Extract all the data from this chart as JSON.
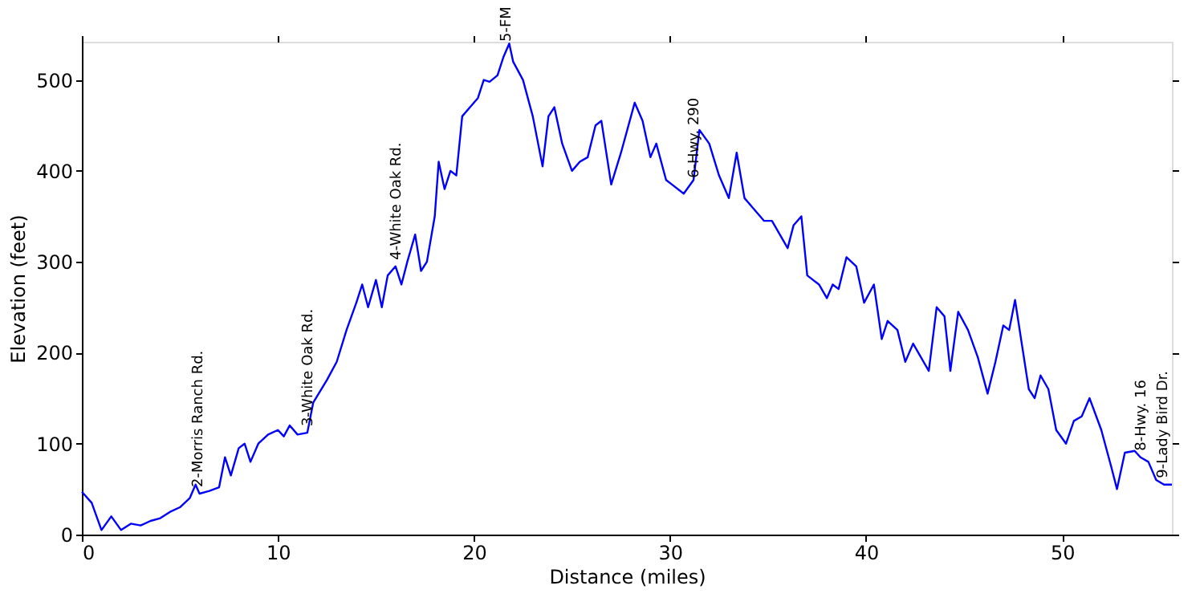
{
  "chart_data": {
    "type": "line",
    "xlabel": "Distance (miles)",
    "ylabel": "Elevation (feet)",
    "xlim": [
      0,
      55.6
    ],
    "ylim": [
      0,
      542
    ],
    "xticks": [
      0,
      10,
      20,
      30,
      40,
      50
    ],
    "yticks": [
      0,
      100,
      200,
      300,
      400,
      500
    ],
    "grid": false,
    "marker": "none",
    "line_style": "solid",
    "series": [
      {
        "color": "#0000ff",
        "x": [
          0,
          0.5,
          1.0,
          1.5,
          2,
          2.5,
          3,
          3.5,
          4,
          4.5,
          5,
          5.5,
          5.8,
          6,
          6.5,
          7,
          7.3,
          7.6,
          8,
          8.3,
          8.6,
          9,
          9.5,
          10,
          10.3,
          10.6,
          11,
          11.5,
          11.8,
          12.5,
          13,
          13.5,
          14,
          14.3,
          14.6,
          15,
          15.3,
          15.6,
          16,
          16.3,
          16.6,
          17,
          17.3,
          17.6,
          18,
          18.2,
          18.5,
          18.8,
          19.1,
          19.4,
          19.8,
          20.2,
          20.5,
          20.8,
          21.2,
          21.5,
          21.8,
          22,
          22.5,
          23,
          23.5,
          23.8,
          24.1,
          24.5,
          25,
          25.4,
          25.8,
          26.2,
          26.5,
          27,
          27.5,
          28.2,
          28.6,
          29,
          29.3,
          29.8,
          30.1,
          30.7,
          31.2,
          31.5,
          32,
          32.5,
          33,
          33.4,
          33.8,
          34.2,
          34.8,
          35.2,
          35.6,
          36,
          36.3,
          36.7,
          37,
          37.6,
          38,
          38.3,
          38.6,
          39,
          39.5,
          39.9,
          40.4,
          40.8,
          41.1,
          41.6,
          42,
          42.4,
          42.8,
          43.2,
          43.6,
          44,
          44.3,
          44.7,
          45.2,
          45.7,
          46.2,
          46.6,
          47,
          47.3,
          47.6,
          48.3,
          48.6,
          48.9,
          49.3,
          49.7,
          50.2,
          50.6,
          51,
          51.4,
          52,
          52.5,
          52.8,
          53.2,
          53.7,
          54,
          54.4,
          54.8,
          55.2,
          55.6
        ],
        "values": [
          47,
          35,
          5,
          20,
          5,
          12,
          10,
          15,
          18,
          25,
          30,
          40,
          55,
          45,
          48,
          52,
          85,
          65,
          95,
          100,
          80,
          100,
          110,
          115,
          108,
          120,
          110,
          112,
          145,
          170,
          190,
          225,
          255,
          275,
          250,
          280,
          250,
          285,
          295,
          275,
          300,
          330,
          290,
          300,
          350,
          410,
          380,
          400,
          395,
          460,
          470,
          480,
          500,
          498,
          505,
          525,
          540,
          520,
          500,
          460,
          405,
          460,
          470,
          430,
          400,
          410,
          415,
          450,
          455,
          385,
          420,
          475,
          455,
          415,
          430,
          390,
          385,
          375,
          390,
          445,
          430,
          395,
          370,
          420,
          370,
          360,
          345,
          345,
          330,
          315,
          340,
          350,
          285,
          275,
          260,
          275,
          270,
          305,
          295,
          255,
          275,
          215,
          235,
          225,
          190,
          210,
          195,
          180,
          250,
          240,
          180,
          245,
          225,
          195,
          155,
          190,
          230,
          225,
          258,
          160,
          150,
          175,
          160,
          115,
          100,
          125,
          130,
          150,
          115,
          75,
          50,
          90,
          92,
          85,
          80,
          60,
          55,
          55
        ]
      }
    ],
    "annotations": [
      {
        "text": "2-Morris Ranch Rd.",
        "x": 5.9,
        "y": 45
      },
      {
        "text": "3-White Oak Rd.",
        "x": 11.5,
        "y": 112
      },
      {
        "text": "4-White Oak Rd.",
        "x": 16.0,
        "y": 295
      },
      {
        "text": "5-FM",
        "x": 21.6,
        "y": 535
      },
      {
        "text": "6-Hwy. 290",
        "x": 31.2,
        "y": 385
      },
      {
        "text": "8-Hwy. 16",
        "x": 54.0,
        "y": 85
      },
      {
        "text": "9-Lady Bird Dr.",
        "x": 55.1,
        "y": 55
      }
    ]
  }
}
